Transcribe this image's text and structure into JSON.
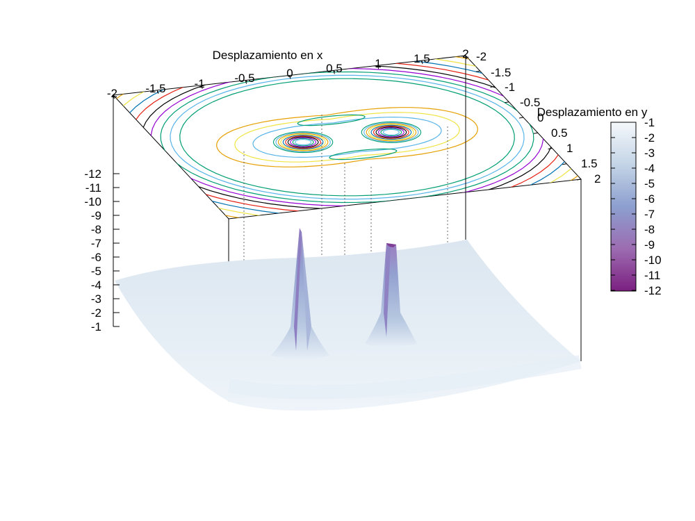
{
  "chart_data": {
    "type": "surface",
    "xlabel": "Desplazamiento en x",
    "ylabel": "Desplazamiento en y",
    "x_ticks": [
      "-2",
      "-1.5",
      "-1",
      "-0.5",
      "0",
      "0.5",
      "1",
      "1.5",
      "2"
    ],
    "y_ticks": [
      "-2",
      "-1.5",
      "-1",
      "-0.5",
      "0",
      "0.5",
      "1",
      "1.5",
      "2"
    ],
    "z_ticks": [
      "-12",
      "-11",
      "-10",
      "-9",
      "-8",
      "-7",
      "-6",
      "-5",
      "-4",
      "-3",
      "-2",
      "-1"
    ],
    "colorbar_ticks": [
      "-1",
      "-2",
      "-3",
      "-4",
      "-5",
      "-6",
      "-7",
      "-8",
      "-9",
      "-10",
      "-11",
      "-12"
    ],
    "xlim": [
      -2,
      2
    ],
    "ylim": [
      -2,
      2
    ],
    "zlim": [
      -12,
      -1
    ],
    "colormap": [
      "#7a1e7f",
      "#9a6ab0",
      "#8fa2cf",
      "#bccfe3",
      "#eef4f9"
    ],
    "peaks": [
      {
        "x": -0.5,
        "y": 0,
        "z": -12
      },
      {
        "x": 0.5,
        "y": 0,
        "z": -12
      }
    ],
    "contour_colors": [
      "#009e73",
      "#56b4e9",
      "#e69f00",
      "#f0e442",
      "#0072b2",
      "#e51e10",
      "#000000",
      "#9400d3",
      "#009e73",
      "#56b4e9"
    ]
  }
}
